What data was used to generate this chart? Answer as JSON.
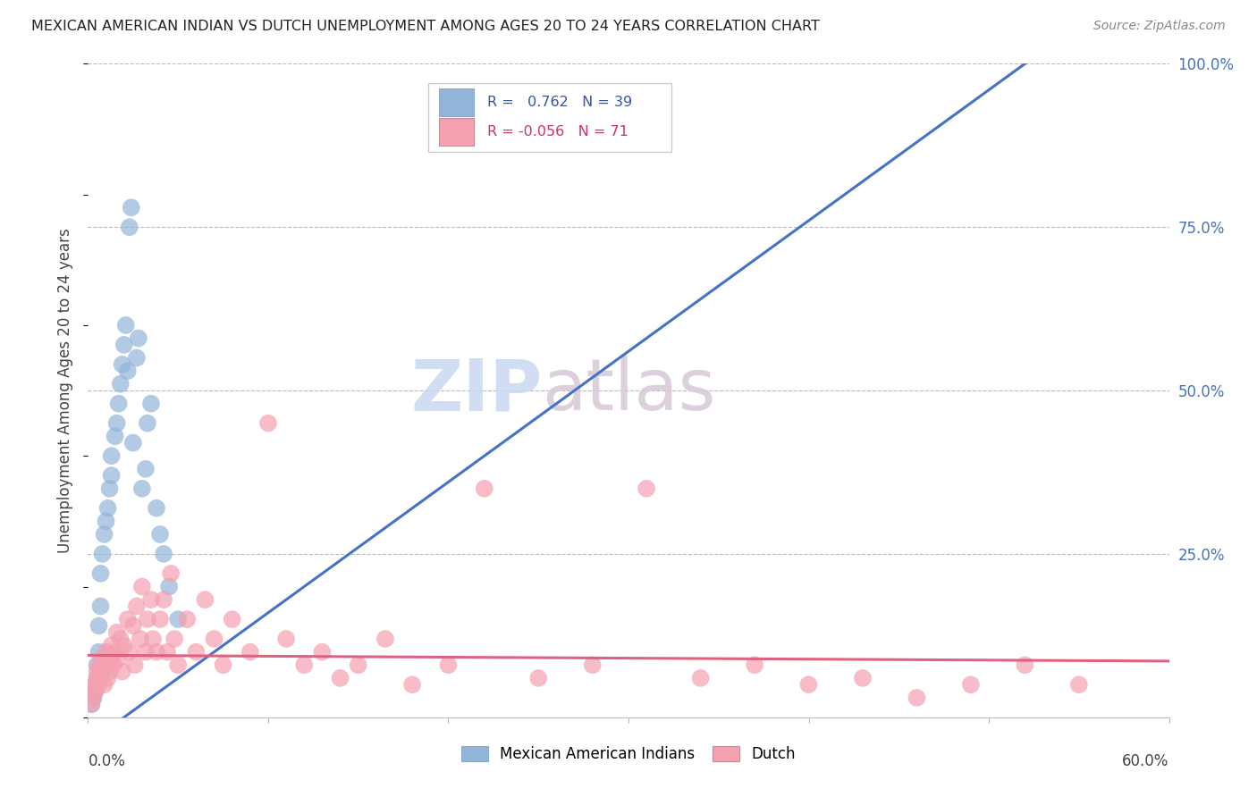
{
  "title": "MEXICAN AMERICAN INDIAN VS DUTCH UNEMPLOYMENT AMONG AGES 20 TO 24 YEARS CORRELATION CHART",
  "source": "Source: ZipAtlas.com",
  "ylabel": "Unemployment Among Ages 20 to 24 years",
  "legend1_label": "Mexican American Indians",
  "legend2_label": "Dutch",
  "R1": 0.762,
  "N1": 39,
  "R2": -0.056,
  "N2": 71,
  "blue_color": "#92B4D9",
  "pink_color": "#F4A0B0",
  "blue_line_color": "#4472C4",
  "pink_line_color": "#E06080",
  "watermark_zip": "ZIP",
  "watermark_atlas": "atlas",
  "xlim": [
    0,
    0.6
  ],
  "ylim": [
    0,
    1.0
  ],
  "yticks": [
    0,
    0.25,
    0.5,
    0.75,
    1.0
  ],
  "ytick_labels_right": [
    "",
    "25.0%",
    "50.0%",
    "75.0%",
    "100.0%"
  ],
  "blue_x": [
    0.002,
    0.003,
    0.004,
    0.004,
    0.005,
    0.005,
    0.006,
    0.006,
    0.007,
    0.007,
    0.008,
    0.009,
    0.01,
    0.011,
    0.012,
    0.013,
    0.013,
    0.015,
    0.016,
    0.017,
    0.018,
    0.019,
    0.02,
    0.021,
    0.022,
    0.023,
    0.024,
    0.025,
    0.027,
    0.028,
    0.03,
    0.032,
    0.033,
    0.035,
    0.038,
    0.04,
    0.042,
    0.045,
    0.05
  ],
  "blue_y": [
    0.02,
    0.03,
    0.04,
    0.05,
    0.06,
    0.08,
    0.1,
    0.14,
    0.17,
    0.22,
    0.25,
    0.28,
    0.3,
    0.32,
    0.35,
    0.37,
    0.4,
    0.43,
    0.45,
    0.48,
    0.51,
    0.54,
    0.57,
    0.6,
    0.53,
    0.75,
    0.78,
    0.42,
    0.55,
    0.58,
    0.35,
    0.38,
    0.45,
    0.48,
    0.32,
    0.28,
    0.25,
    0.2,
    0.15
  ],
  "pink_x": [
    0.002,
    0.003,
    0.004,
    0.004,
    0.005,
    0.005,
    0.006,
    0.006,
    0.007,
    0.008,
    0.008,
    0.009,
    0.01,
    0.01,
    0.011,
    0.012,
    0.012,
    0.013,
    0.014,
    0.015,
    0.016,
    0.017,
    0.018,
    0.019,
    0.02,
    0.022,
    0.023,
    0.025,
    0.026,
    0.027,
    0.029,
    0.03,
    0.032,
    0.033,
    0.035,
    0.036,
    0.038,
    0.04,
    0.042,
    0.044,
    0.046,
    0.048,
    0.05,
    0.055,
    0.06,
    0.065,
    0.07,
    0.075,
    0.08,
    0.09,
    0.1,
    0.11,
    0.12,
    0.13,
    0.14,
    0.15,
    0.165,
    0.18,
    0.2,
    0.22,
    0.25,
    0.28,
    0.31,
    0.34,
    0.37,
    0.4,
    0.43,
    0.46,
    0.49,
    0.52,
    0.55
  ],
  "pink_y": [
    0.02,
    0.03,
    0.04,
    0.05,
    0.06,
    0.07,
    0.05,
    0.08,
    0.06,
    0.09,
    0.07,
    0.05,
    0.08,
    0.1,
    0.06,
    0.09,
    0.07,
    0.11,
    0.08,
    0.1,
    0.13,
    0.09,
    0.12,
    0.07,
    0.11,
    0.15,
    0.1,
    0.14,
    0.08,
    0.17,
    0.12,
    0.2,
    0.1,
    0.15,
    0.18,
    0.12,
    0.1,
    0.15,
    0.18,
    0.1,
    0.22,
    0.12,
    0.08,
    0.15,
    0.1,
    0.18,
    0.12,
    0.08,
    0.15,
    0.1,
    0.45,
    0.12,
    0.08,
    0.1,
    0.06,
    0.08,
    0.12,
    0.05,
    0.08,
    0.35,
    0.06,
    0.08,
    0.35,
    0.06,
    0.08,
    0.05,
    0.06,
    0.03,
    0.05,
    0.08,
    0.05
  ]
}
